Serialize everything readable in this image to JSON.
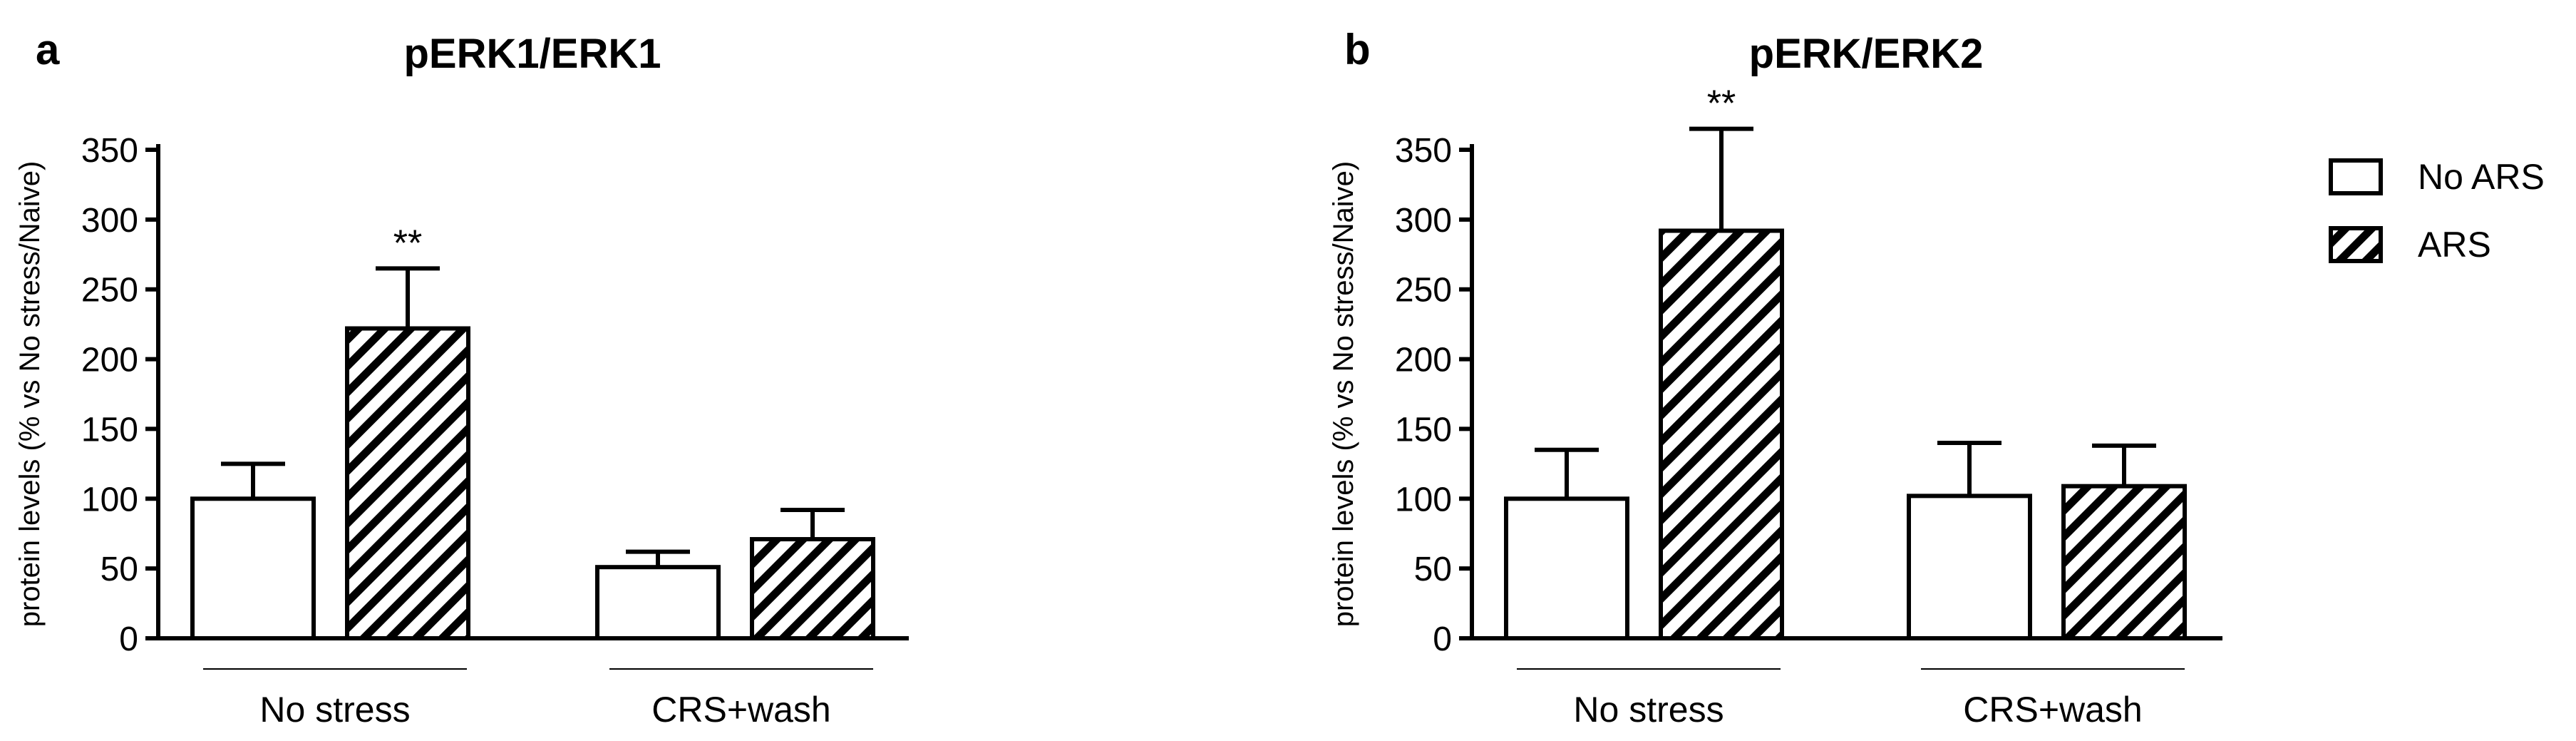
{
  "figure": {
    "legend": {
      "entries": [
        {
          "label": "No ARS",
          "fill": "open"
        },
        {
          "label": "ARS",
          "fill": "hatched"
        }
      ]
    }
  },
  "chart_data": [
    {
      "panel_label": "a",
      "type": "bar",
      "title": "pERK1/ERK1",
      "ylabel": "protein levels (% vs No stress/Naive)",
      "ylim": [
        0,
        350
      ],
      "yticks": [
        "0",
        "50",
        "100",
        "150",
        "200",
        "250",
        "300",
        "350"
      ],
      "groups": [
        "No stress",
        "CRS+wash"
      ],
      "series": [
        {
          "name": "No ARS",
          "values": [
            100,
            51
          ],
          "errors": [
            25,
            11
          ]
        },
        {
          "name": "ARS",
          "values": [
            222,
            71
          ],
          "errors": [
            43,
            21
          ]
        }
      ],
      "annotations": [
        {
          "group": 0,
          "series": 1,
          "text": "**"
        }
      ]
    },
    {
      "panel_label": "b",
      "type": "bar",
      "title": "pERK/ERK2",
      "ylabel": "protein levels (% vs No stress/Naive)",
      "ylim": [
        0,
        350
      ],
      "yticks": [
        "0",
        "50",
        "100",
        "150",
        "200",
        "250",
        "300",
        "350"
      ],
      "groups": [
        "No stress",
        "CRS+wash"
      ],
      "series": [
        {
          "name": "No ARS",
          "values": [
            100,
            102
          ],
          "errors": [
            35,
            38
          ]
        },
        {
          "name": "ARS",
          "values": [
            292,
            109
          ],
          "errors": [
            73,
            29
          ]
        }
      ],
      "annotations": [
        {
          "group": 0,
          "series": 1,
          "text": "**"
        }
      ]
    }
  ],
  "colors": {
    "stroke": "#000000",
    "open_fill": "#ffffff"
  }
}
